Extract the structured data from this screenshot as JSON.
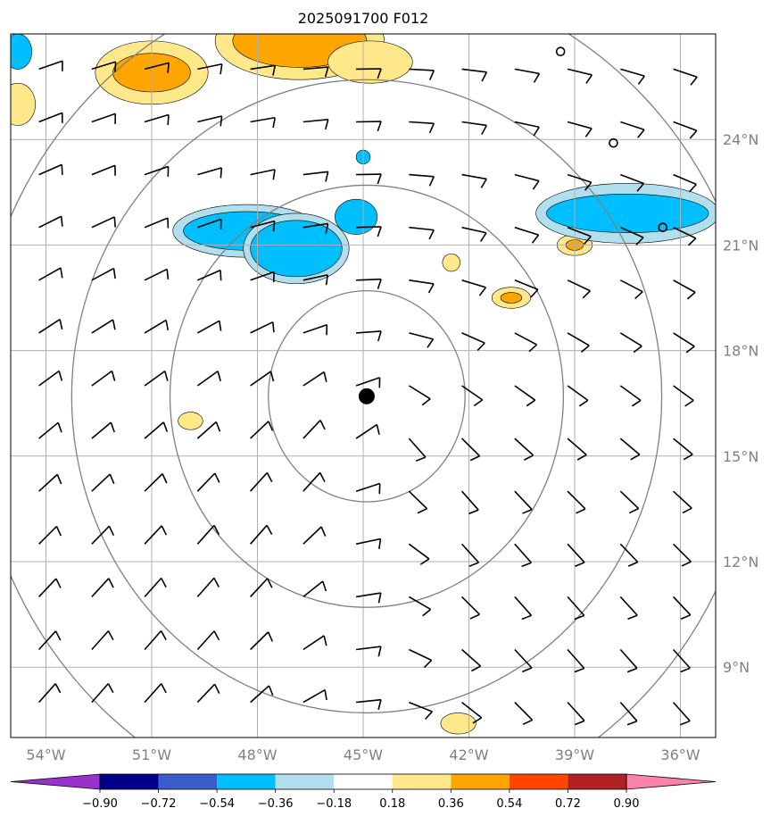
{
  "title": "2025091700 F012",
  "map": {
    "lon_range": [
      -55,
      -35
    ],
    "lat_range": [
      7,
      27
    ],
    "center": {
      "lon": -44.9,
      "lat": 16.7
    },
    "range_rings_deg": [
      3,
      6,
      9,
      12
    ],
    "gridline_color": "#b0b0b0",
    "ring_color": "#808080"
  },
  "lon_labels": [
    {
      "lon": -54,
      "text": "54°W"
    },
    {
      "lon": -51,
      "text": "51°W"
    },
    {
      "lon": -48,
      "text": "48°W"
    },
    {
      "lon": -45,
      "text": "45°W"
    },
    {
      "lon": -42,
      "text": "42°W"
    },
    {
      "lon": -39,
      "text": "39°W"
    },
    {
      "lon": -36,
      "text": "36°W"
    }
  ],
  "lat_labels": [
    {
      "lat": 24,
      "text": "24°N"
    },
    {
      "lat": 21,
      "text": "21°N"
    },
    {
      "lat": 18,
      "text": "18°N"
    },
    {
      "lat": 15,
      "text": "15°N"
    },
    {
      "lat": 12,
      "text": "12°N"
    },
    {
      "lat": 9,
      "text": "9°N"
    }
  ],
  "colorbar": {
    "ticks": [
      "−0.90",
      "−0.72",
      "−0.54",
      "−0.36",
      "−0.18",
      "0.18",
      "0.36",
      "0.54",
      "0.72",
      "0.90"
    ],
    "colors": [
      "#9932cc",
      "#00008b",
      "#3a5fcd",
      "#00bfff",
      "#b2dfee",
      "#ffffff",
      "#ffe88a",
      "#ffa500",
      "#ff4500",
      "#b22222",
      "#ff82ab"
    ]
  },
  "fields": [
    {
      "lon": -51.0,
      "lat": 25.9,
      "rx": 1.6,
      "ry": 0.9,
      "level": 1
    },
    {
      "lon": -51.0,
      "lat": 25.9,
      "rx": 1.1,
      "ry": 0.55,
      "level": 2
    },
    {
      "lon": -46.8,
      "lat": 26.8,
      "rx": 2.4,
      "ry": 1.1,
      "level": 1
    },
    {
      "lon": -46.8,
      "lat": 26.8,
      "rx": 1.9,
      "ry": 0.75,
      "level": 2
    },
    {
      "lon": -44.8,
      "lat": 26.2,
      "rx": 1.2,
      "ry": 0.6,
      "level": 1
    },
    {
      "lon": -54.8,
      "lat": 25.0,
      "rx": 0.5,
      "ry": 0.6,
      "level": 1
    },
    {
      "lon": -39.0,
      "lat": 21.0,
      "rx": 0.5,
      "ry": 0.3,
      "level": 1
    },
    {
      "lon": -39.0,
      "lat": 21.0,
      "rx": 0.25,
      "ry": 0.15,
      "level": 2
    },
    {
      "lon": -40.8,
      "lat": 19.5,
      "rx": 0.55,
      "ry": 0.3,
      "level": 1
    },
    {
      "lon": -40.8,
      "lat": 19.5,
      "rx": 0.3,
      "ry": 0.15,
      "level": 2
    },
    {
      "lon": -42.5,
      "lat": 20.5,
      "rx": 0.25,
      "ry": 0.25,
      "level": 1
    },
    {
      "lon": -49.9,
      "lat": 16.0,
      "rx": 0.35,
      "ry": 0.25,
      "level": 1
    },
    {
      "lon": -42.3,
      "lat": 7.4,
      "rx": 0.5,
      "ry": 0.3,
      "level": 1
    },
    {
      "lon": -48.3,
      "lat": 21.4,
      "rx": 2.1,
      "ry": 0.75,
      "level": -1
    },
    {
      "lon": -48.3,
      "lat": 21.4,
      "rx": 1.8,
      "ry": 0.55,
      "level": -2
    },
    {
      "lon": -46.9,
      "lat": 20.9,
      "rx": 1.5,
      "ry": 1.0,
      "level": -1
    },
    {
      "lon": -46.9,
      "lat": 20.9,
      "rx": 1.3,
      "ry": 0.8,
      "level": -2
    },
    {
      "lon": -45.2,
      "lat": 21.8,
      "rx": 0.6,
      "ry": 0.5,
      "level": -2
    },
    {
      "lon": -45.0,
      "lat": 23.5,
      "rx": 0.2,
      "ry": 0.2,
      "level": -2
    },
    {
      "lon": -37.5,
      "lat": 21.9,
      "rx": 2.6,
      "ry": 0.85,
      "level": -1
    },
    {
      "lon": -37.5,
      "lat": 21.9,
      "rx": 2.3,
      "ry": 0.55,
      "level": -2
    },
    {
      "lon": -54.8,
      "lat": 26.5,
      "rx": 0.4,
      "ry": 0.5,
      "level": -2
    }
  ],
  "calm_points": [
    {
      "lon": -39.4,
      "lat": 26.5
    },
    {
      "lon": -37.9,
      "lat": 23.9
    },
    {
      "lon": -36.5,
      "lat": 21.5
    }
  ],
  "barb_grid": {
    "lon_start": -54.2,
    "lon_step": 1.5,
    "lat_start": 8.0,
    "lat_step": 1.5,
    "cols": 14,
    "rows": 13
  }
}
